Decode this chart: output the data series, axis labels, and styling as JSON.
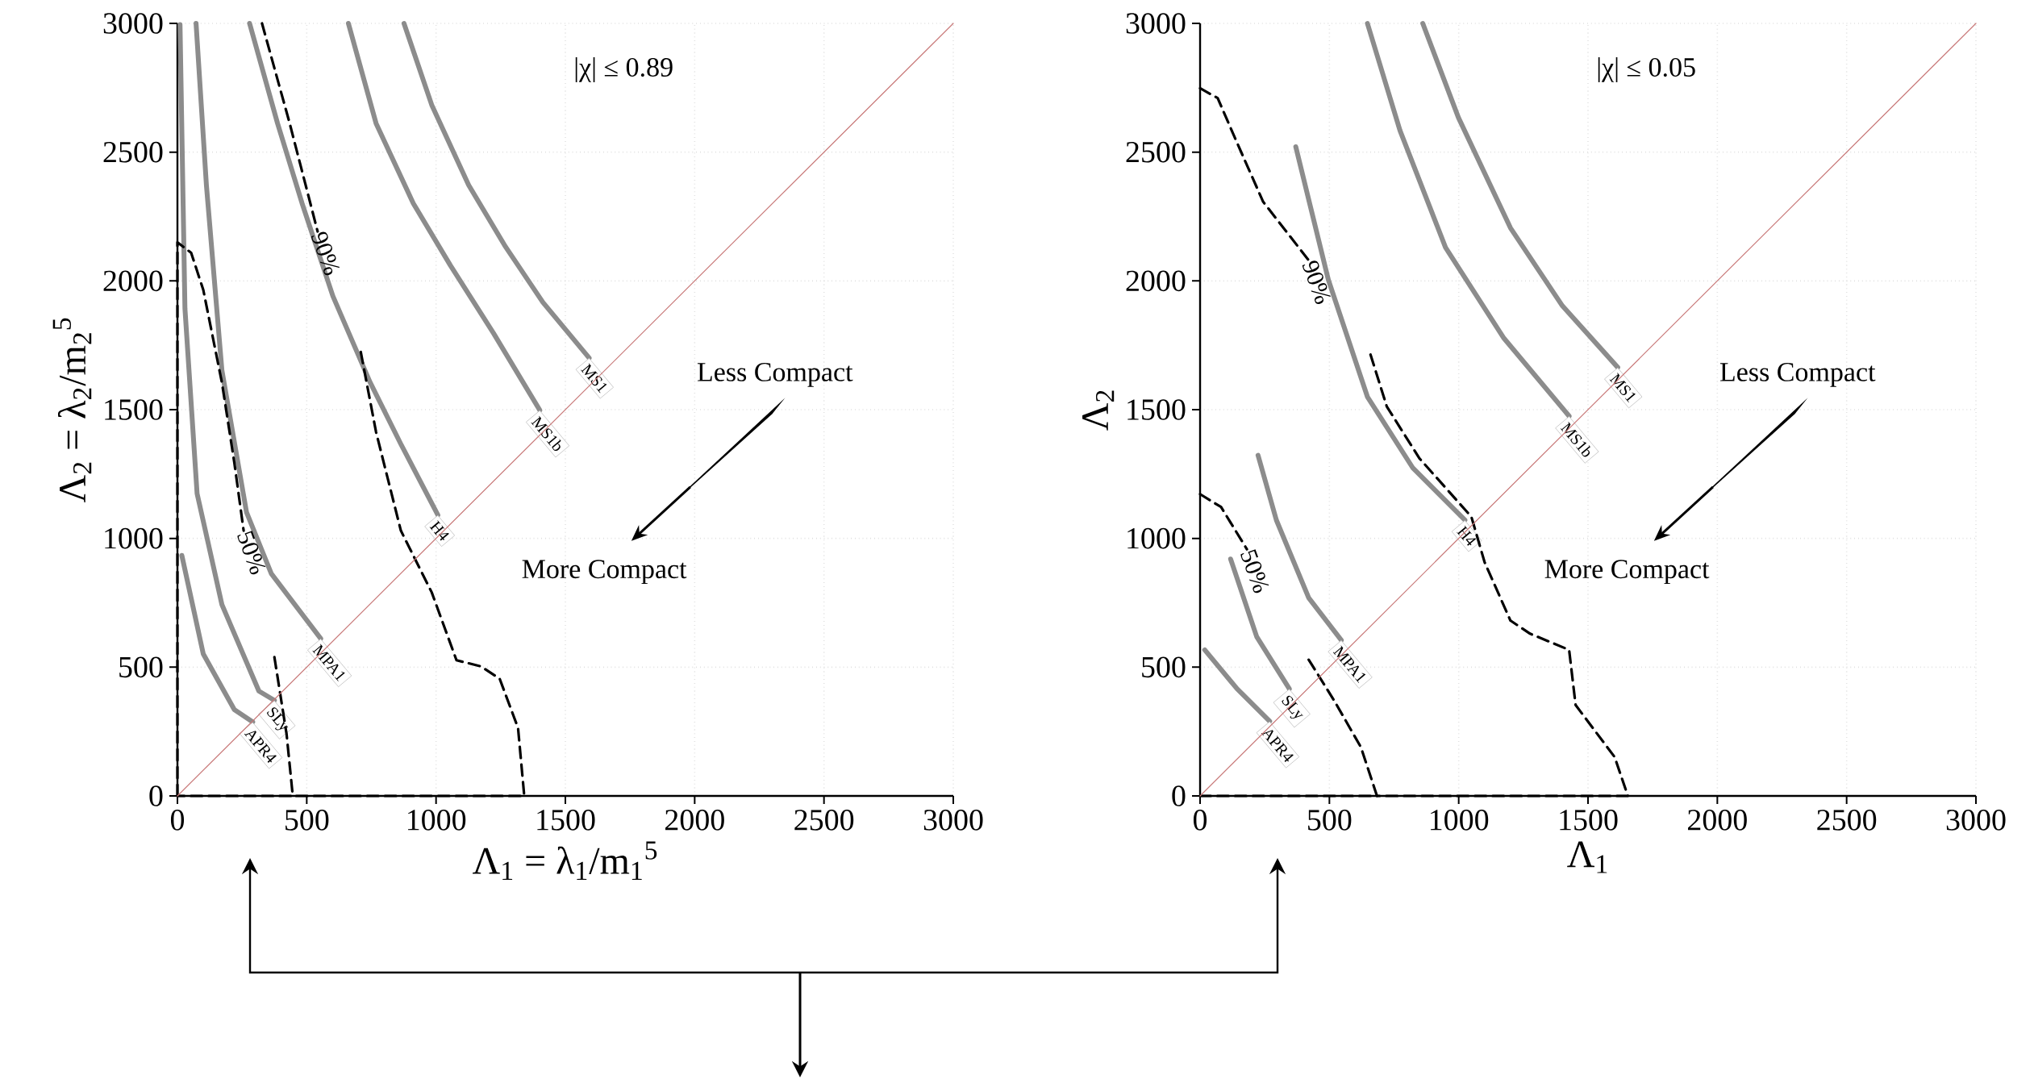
{
  "chart_data": [
    {
      "type": "line",
      "xlabel": "Λ$_{1}$ = λ$_{1}$/m$_{1}$$^{5}$",
      "ylabel": "Λ$_{2}$ = λ$_{2}$/m$_{2}$$^{5}$",
      "xlim": [
        0,
        3000
      ],
      "ylim": [
        0,
        3000
      ],
      "xticks": [
        0,
        500,
        1000,
        1500,
        2000,
        2500,
        3000
      ],
      "yticks": [
        0,
        500,
        1000,
        1500,
        2000,
        2500,
        3000
      ],
      "grid": true,
      "marker": "none",
      "annotations": [
        "|χ| ≤ 0.89",
        "Less Compact",
        "More Compact"
      ],
      "series": [
        {
          "name": "MS1",
          "color": "#8c8c8c",
          "line_style": "solid",
          "x": [
            876,
            983,
            1126,
            1269,
            1413,
            1592
          ],
          "values": [
            3000,
            2684,
            2372,
            2132,
            1917,
            1701
          ]
        },
        {
          "name": "MS1b",
          "color": "#8c8c8c",
          "line_style": "solid",
          "x": [
            661,
            768,
            912,
            1055,
            1222,
            1401
          ],
          "values": [
            3000,
            2612,
            2301,
            2061,
            1797,
            1498
          ]
        },
        {
          "name": "H4",
          "color": "#8c8c8c",
          "line_style": "solid",
          "x": [
            279,
            387,
            482,
            601,
            745,
            864,
            1007
          ],
          "values": [
            3000,
            2612,
            2301,
            1941,
            1606,
            1366,
            1091
          ]
        },
        {
          "name": "MPA1",
          "color": "#8c8c8c",
          "line_style": "solid",
          "x": [
            72,
            112,
            172,
            267,
            363,
            554
          ],
          "values": [
            3000,
            2372,
            1653,
            1102,
            863,
            611
          ]
        },
        {
          "name": "SLy",
          "color": "#8c8c8c",
          "line_style": "solid",
          "x": [
            10,
            29,
            76,
            172,
            315,
            375
          ],
          "values": [
            2995,
            1893,
            1174,
            743,
            407,
            371
          ]
        },
        {
          "name": "APR4",
          "color": "#8c8c8c",
          "line_style": "solid",
          "x": [
            17,
            100,
            220,
            291
          ],
          "values": [
            934,
            551,
            335,
            287
          ]
        },
        {
          "name": "90%",
          "color": "#000000",
          "line_style": "dashed",
          "x": [
            327,
            434,
            542,
            625,
            709,
            768,
            864,
            983,
            1079,
            1174,
            1246,
            1317,
            1341,
            446
          ],
          "values": [
            3000,
            2612,
            2192,
            null,
            1724,
            1413,
            1030,
            791,
            527,
            503,
            455,
            264,
            0,
            0
          ]
        },
        {
          "name": "50%",
          "color": "#000000",
          "line_style": "dashed",
          "x": [
            0,
            0,
            53,
            100,
            172,
            220,
            256,
            315,
            375,
            422,
            446,
            0
          ],
          "values": [
            0,
            2150,
            2109,
            1965,
            1605,
            1294,
            1030,
            null,
            539,
            240,
            0,
            0
          ]
        },
        {
          "color": "#c87878",
          "line_style": "solid",
          "x": [
            0,
            3000
          ],
          "values": [
            0,
            3000
          ]
        }
      ]
    },
    {
      "type": "line",
      "xlabel": "Λ$_{1}$",
      "ylabel": "Λ$_{2}$",
      "xlim": [
        0,
        3000
      ],
      "ylim": [
        0,
        3000
      ],
      "xticks": [
        0,
        500,
        1000,
        1500,
        2000,
        2500,
        3000
      ],
      "yticks": [
        0,
        500,
        1000,
        1500,
        2000,
        2500,
        3000
      ],
      "grid": true,
      "marker": "none",
      "annotations": [
        "|χ| ≤ 0.05",
        "Less Compact",
        "More Compact"
      ],
      "series": [
        {
          "name": "MS1",
          "color": "#8c8c8c",
          "line_style": "solid",
          "x": [
            861,
            999,
            1200,
            1401,
            1615
          ],
          "values": [
            3000,
            2634,
            2206,
            1903,
            1664
          ]
        },
        {
          "name": "MS1b",
          "color": "#8c8c8c",
          "line_style": "solid",
          "x": [
            647,
            773,
            949,
            1175,
            1427
          ],
          "values": [
            3000,
            2584,
            2130,
            1777,
            1475
          ]
        },
        {
          "name": "H4",
          "color": "#8c8c8c",
          "line_style": "solid",
          "x": [
            370,
            496,
            647,
            823,
            1024
          ],
          "values": [
            2521,
            2004,
            1550,
            1273,
            1071
          ]
        },
        {
          "name": "MPA1",
          "color": "#8c8c8c",
          "line_style": "solid",
          "x": [
            224,
            295,
            420,
            546
          ],
          "values": [
            1323,
            1071,
            769,
            605
          ]
        },
        {
          "name": "SLy",
          "color": "#8c8c8c",
          "line_style": "solid",
          "x": [
            118,
            219,
            345
          ],
          "values": [
            920,
            618,
            416
          ]
        },
        {
          "name": "APR4",
          "color": "#8c8c8c",
          "line_style": "solid",
          "x": [
            18,
            143,
            269
          ],
          "values": [
            567,
            416,
            290
          ]
        },
        {
          "name": "90%",
          "color": "#000000",
          "line_style": "dashed",
          "x": [
            0,
            68,
            144,
            244,
            420,
            540,
            659,
            722,
            848,
            1049,
            1100,
            1200,
            1276,
            1427,
            1452,
            1603,
            1654,
            684
          ],
          "values": [
            2748,
            2710,
            2534,
            2307,
            2080,
            null,
            1714,
            1512,
            1311,
            1084,
            908,
            681,
            630,
            567,
            353,
            151,
            0,
            0
          ]
        },
        {
          "name": "50%",
          "color": "#000000",
          "line_style": "dashed",
          "x": [
            0,
            81,
            181,
            300,
            420,
            521,
            622,
            684,
            0
          ],
          "values": [
            1172,
            1122,
            958,
            null,
            529,
            366,
            189,
            0,
            0
          ]
        },
        {
          "color": "#c87878",
          "line_style": "solid",
          "x": [
            0,
            3000
          ],
          "values": [
            0,
            3000
          ]
        }
      ]
    }
  ]
}
